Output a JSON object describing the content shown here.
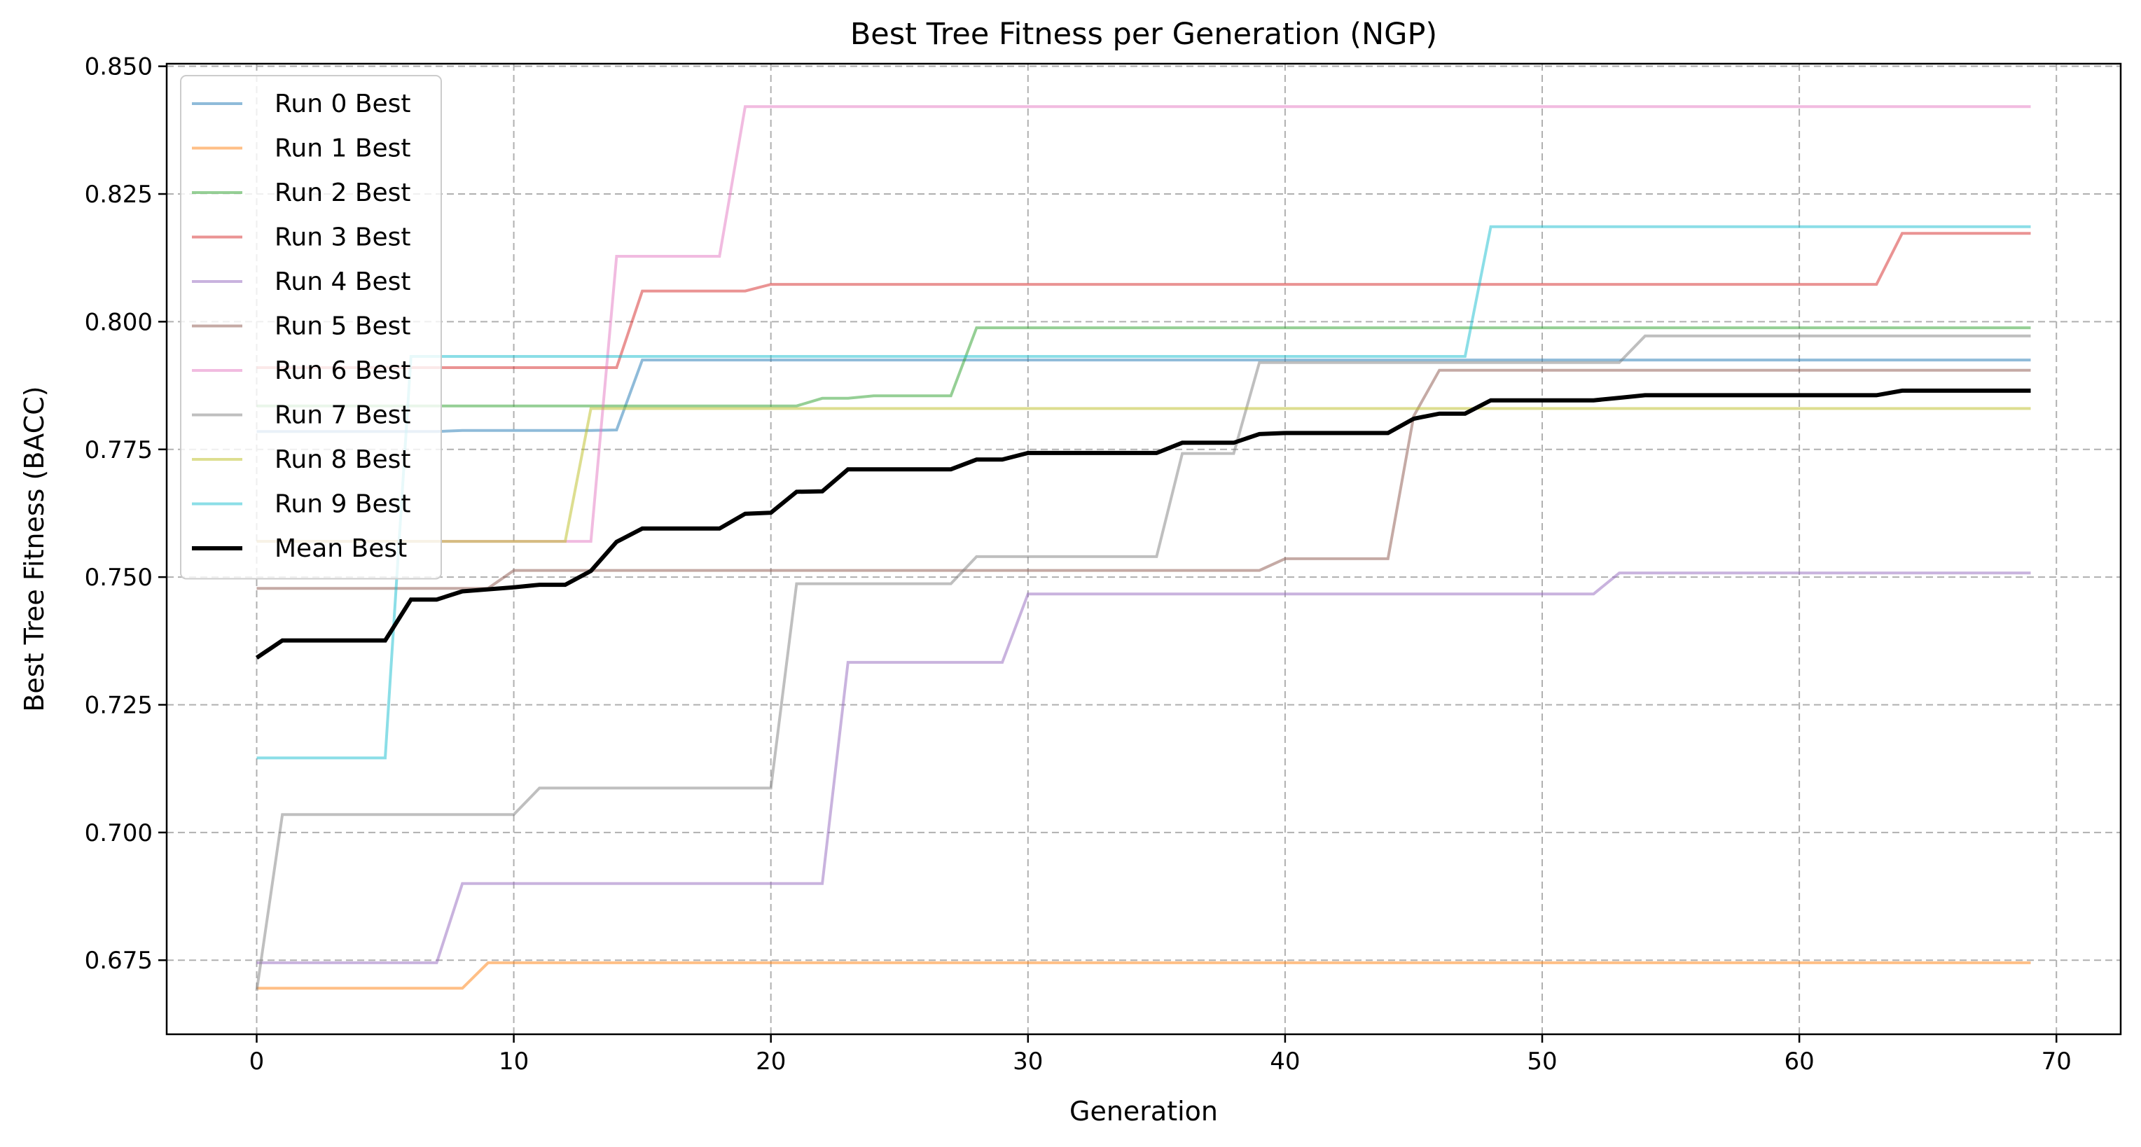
{
  "chart_data": {
    "type": "line",
    "title": "Best Tree Fitness per Generation (NGP)",
    "xlabel": "Generation",
    "ylabel": "Best Tree Fitness (BACC)",
    "xlim": [
      -3.5,
      72.5
    ],
    "ylim": [
      0.6605,
      0.8505
    ],
    "x_ticks": [
      0,
      10,
      20,
      30,
      40,
      50,
      60,
      70
    ],
    "y_ticks": [
      0.675,
      0.7,
      0.725,
      0.75,
      0.775,
      0.8,
      0.825,
      0.85
    ],
    "y_tick_labels": [
      "0.675",
      "0.700",
      "0.725",
      "0.750",
      "0.775",
      "0.800",
      "0.825",
      "0.850"
    ],
    "grid": true,
    "legend_position": "upper-left",
    "x_start": 0,
    "x_end": 69,
    "series": [
      {
        "name": "Run 0 Best",
        "color": "#1f77b4",
        "steps": [
          [
            0,
            0.7785
          ],
          [
            8,
            0.7787
          ],
          [
            14,
            0.7788
          ],
          [
            15,
            0.7925
          ]
        ]
      },
      {
        "name": "Run 1 Best",
        "color": "#ff7f0e",
        "steps": [
          [
            0,
            0.6695
          ],
          [
            8,
            0.6695
          ],
          [
            9,
            0.6745
          ]
        ]
      },
      {
        "name": "Run 2 Best",
        "color": "#2ca02c",
        "steps": [
          [
            0,
            0.7835
          ],
          [
            21,
            0.7835
          ],
          [
            22,
            0.785
          ],
          [
            23,
            0.785
          ],
          [
            24,
            0.7855
          ],
          [
            27,
            0.7855
          ],
          [
            28,
            0.7988
          ]
        ]
      },
      {
        "name": "Run 3 Best",
        "color": "#d62728",
        "steps": [
          [
            0,
            0.791
          ],
          [
            14,
            0.791
          ],
          [
            15,
            0.806
          ],
          [
            19,
            0.806
          ],
          [
            20,
            0.8073
          ],
          [
            63,
            0.8073
          ],
          [
            64,
            0.8173
          ]
        ]
      },
      {
        "name": "Run 4 Best",
        "color": "#9467bd",
        "steps": [
          [
            0,
            0.6745
          ],
          [
            7,
            0.6745
          ],
          [
            8,
            0.69
          ],
          [
            22,
            0.69
          ],
          [
            23,
            0.7333
          ],
          [
            29,
            0.7333
          ],
          [
            30,
            0.7467
          ],
          [
            52,
            0.7467
          ],
          [
            53,
            0.7508
          ]
        ]
      },
      {
        "name": "Run 5 Best",
        "color": "#8c564b",
        "steps": [
          [
            0,
            0.7478
          ],
          [
            9,
            0.7478
          ],
          [
            10,
            0.7513
          ],
          [
            39,
            0.7513
          ],
          [
            40,
            0.7536
          ],
          [
            44,
            0.7536
          ],
          [
            45,
            0.7815
          ],
          [
            46,
            0.7905
          ]
        ]
      },
      {
        "name": "Run 6 Best",
        "color": "#e377c2",
        "steps": [
          [
            0,
            0.757
          ],
          [
            13,
            0.757
          ],
          [
            14,
            0.8128
          ],
          [
            18,
            0.8128
          ],
          [
            19,
            0.8421
          ]
        ]
      },
      {
        "name": "Run 7 Best",
        "color": "#7f7f7f",
        "steps": [
          [
            0,
            0.669
          ],
          [
            1,
            0.7035
          ],
          [
            10,
            0.7035
          ],
          [
            11,
            0.7087
          ],
          [
            20,
            0.7087
          ],
          [
            21,
            0.7487
          ],
          [
            27,
            0.7487
          ],
          [
            28,
            0.754
          ],
          [
            35,
            0.754
          ],
          [
            36,
            0.7742
          ],
          [
            38,
            0.7742
          ],
          [
            39,
            0.792
          ],
          [
            53,
            0.792
          ],
          [
            54,
            0.7972
          ]
        ]
      },
      {
        "name": "Run 8 Best",
        "color": "#bcbd22",
        "steps": [
          [
            0,
            0.757
          ],
          [
            12,
            0.757
          ],
          [
            13,
            0.783
          ]
        ]
      },
      {
        "name": "Run 9 Best",
        "color": "#17becf",
        "steps": [
          [
            0,
            0.7146
          ],
          [
            5,
            0.7146
          ],
          [
            6,
            0.7932
          ],
          [
            47,
            0.7932
          ],
          [
            48,
            0.8186
          ]
        ]
      },
      {
        "name": "Mean Best",
        "color": "#000000",
        "x": [
          0,
          1,
          2,
          3,
          4,
          5,
          6,
          7,
          8,
          9,
          10,
          11,
          12,
          13,
          14,
          15,
          16,
          17,
          18,
          19,
          20,
          21,
          22,
          23,
          24,
          25,
          26,
          27,
          28,
          29,
          30,
          31,
          32,
          33,
          34,
          35,
          36,
          37,
          38,
          39,
          40,
          41,
          42,
          43,
          44,
          45,
          46,
          47,
          48,
          49,
          50,
          51,
          52,
          53,
          54,
          55,
          56,
          57,
          58,
          59,
          60,
          61,
          62,
          63,
          64,
          65,
          66,
          67,
          68,
          69
        ],
        "values": [
          0.7342,
          0.7376,
          0.7376,
          0.7376,
          0.7376,
          0.7376,
          0.7456,
          0.7456,
          0.7472,
          0.7476,
          0.748,
          0.7485,
          0.7485,
          0.7512,
          0.7569,
          0.7595,
          0.7595,
          0.7595,
          0.7595,
          0.7624,
          0.7626,
          0.7667,
          0.7668,
          0.7711,
          0.7711,
          0.7711,
          0.7711,
          0.7711,
          0.773,
          0.773,
          0.7743,
          0.7743,
          0.7743,
          0.7743,
          0.7743,
          0.7743,
          0.7763,
          0.7763,
          0.7763,
          0.778,
          0.7782,
          0.7782,
          0.7782,
          0.7782,
          0.7782,
          0.781,
          0.782,
          0.782,
          0.7846,
          0.7846,
          0.7846,
          0.7846,
          0.7846,
          0.7851,
          0.7856,
          0.7856,
          0.7856,
          0.7856,
          0.7856,
          0.7856,
          0.7856,
          0.7856,
          0.7856,
          0.7856,
          0.7865,
          0.7865,
          0.7865,
          0.7865,
          0.7865,
          0.7865
        ]
      }
    ]
  }
}
